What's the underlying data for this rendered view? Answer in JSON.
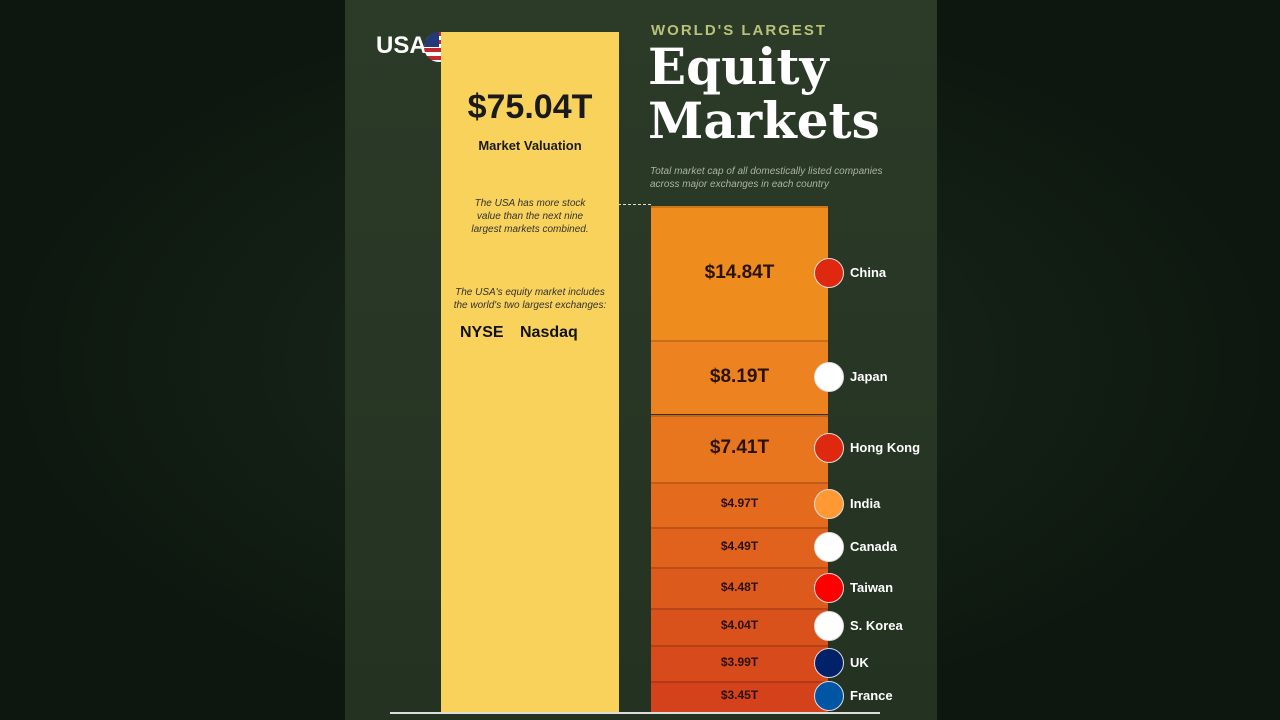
{
  "chart_data": {
    "type": "stacked-bar",
    "header": "WORLD'S LARGEST",
    "title": "Equity Markets",
    "subtitle": "Total market cap of all domestically listed companies across major exchanges in each country",
    "highlight": {
      "name": "USA",
      "value": 75.04,
      "value_label": "$75.04T",
      "caption": "Market Valuation",
      "color": "#f8d25a"
    },
    "annotations": [
      "The USA has more stock value than the next nine largest markets combined.",
      "The USA's equity market includes the world's two largest exchanges:"
    ],
    "exchanges": [
      "NYSE",
      "Nasdaq"
    ],
    "categories": [
      "China",
      "Japan",
      "Hong Kong",
      "India",
      "Canada",
      "Taiwan",
      "S. Korea",
      "UK",
      "France"
    ],
    "values": [
      14.84,
      8.19,
      7.41,
      4.97,
      4.49,
      4.48,
      4.04,
      3.99,
      3.45
    ],
    "value_labels": [
      "$14.84T",
      "$8.19T",
      "$7.41T",
      "$4.97T",
      "$4.49T",
      "$4.48T",
      "$4.04T",
      "$3.99T",
      "$3.45T"
    ],
    "colors": [
      "#ee8c1e",
      "#ec8220",
      "#e8761f",
      "#e46a1e",
      "#e0621d",
      "#dd5a1d",
      "#d9521c",
      "#d64a1b",
      "#d3421a"
    ]
  }
}
